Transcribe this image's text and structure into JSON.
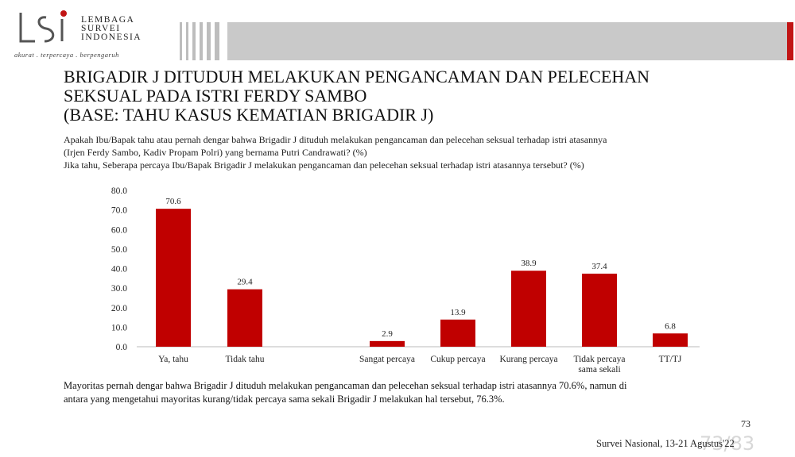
{
  "header": {
    "logo_name_line1": "LEMBAGA",
    "logo_name_line2": "SURVEI",
    "logo_name_line3": "INDONESIA",
    "logo_tagline": "akurat . terpercaya . berpengaruh",
    "brand_red": "#c11515",
    "banner_gray": "#c9c9c9"
  },
  "title": {
    "line1": "BRIGADIR J DITUDUH MELAKUKAN PENGANCAMAN DAN PELECEHAN",
    "line2": "SEKSUAL PADA ISTRI FERDY SAMBO",
    "line3": "(BASE: TAHU KASUS KEMATIAN BRIGADIR J)"
  },
  "questions": {
    "q1_line1": "Apakah Ibu/Bapak tahu atau pernah dengar bahwa Brigadir J dituduh melakukan pengancaman dan pelecehan seksual terhadap istri atasannya",
    "q1_line2": "(Irjen Ferdy Sambo, Kadiv Propam Polri) yang bernama Putri Candrawati? (%)",
    "q2": "Jika tahu, Seberapa percaya Ibu/Bapak Brigadir J melakukan pengancaman dan pelecehan seksual terhadap istri atasannya tersebut? (%)"
  },
  "chart_data": {
    "type": "bar",
    "ylim": [
      0,
      80
    ],
    "yticks": [
      "0.0",
      "10.0",
      "20.0",
      "30.0",
      "40.0",
      "50.0",
      "60.0",
      "70.0",
      "80.0"
    ],
    "bar_color": "#c00000",
    "categories": [
      [
        "Ya, tahu"
      ],
      [
        "Tidak tahu"
      ],
      [
        "Sangat percaya"
      ],
      [
        "Cukup percaya"
      ],
      [
        "Kurang percaya"
      ],
      [
        "Tidak percaya",
        "sama sekali"
      ],
      [
        "TT/TJ"
      ]
    ],
    "values": [
      70.6,
      29.4,
      2.9,
      13.9,
      38.9,
      37.4,
      6.8
    ],
    "value_labels": [
      "70.6",
      "29.4",
      "2.9",
      "13.9",
      "38.9",
      "37.4",
      "6.8"
    ]
  },
  "summary": {
    "line1": "Mayoritas pernah dengar bahwa Brigadir J dituduh melakukan pengancaman dan pelecehan seksual terhadap istri atasannya 70.6%, namun di",
    "line2": "antara yang mengetahui mayoritas kurang/tidak percaya sama sekali Brigadir J melakukan hal tersebut, 76.3%."
  },
  "footer": {
    "page_number": "73",
    "survey": "Survei Nasional, 13-21 Agustus'22",
    "ghost_page": "73/83"
  }
}
